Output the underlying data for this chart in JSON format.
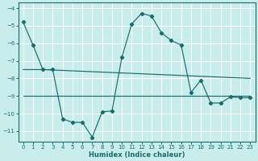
{
  "xlabel": "Humidex (Indice chaleur)",
  "background_color": "#c8edec",
  "grid_color": "#ffffff",
  "line_color": "#1a6b6b",
  "xlim": [
    -0.5,
    23.5
  ],
  "ylim": [
    -11.6,
    -3.7
  ],
  "yticks": [
    -11,
    -10,
    -9,
    -8,
    -7,
    -6,
    -5,
    -4
  ],
  "xticks": [
    0,
    1,
    2,
    3,
    4,
    5,
    6,
    7,
    8,
    9,
    10,
    11,
    12,
    13,
    14,
    15,
    16,
    17,
    18,
    19,
    20,
    21,
    22,
    23
  ],
  "series1_x": [
    0,
    1,
    2,
    3,
    4,
    5,
    6,
    7,
    8,
    9,
    10,
    11,
    12,
    13,
    14,
    15,
    16,
    17,
    18,
    19,
    20,
    21,
    22,
    23
  ],
  "series1_y": [
    -4.8,
    -6.1,
    -7.5,
    -7.5,
    -10.3,
    -10.5,
    -10.5,
    -11.35,
    -9.9,
    -9.85,
    -6.8,
    -4.9,
    -4.3,
    -4.45,
    -5.4,
    -5.85,
    -6.1,
    -8.8,
    -8.1,
    -9.4,
    -9.4,
    -9.05,
    -9.1,
    -9.1
  ],
  "series2_x": [
    0,
    2,
    23
  ],
  "series2_y": [
    -7.5,
    -7.5,
    -8.0
  ],
  "series3_x": [
    0,
    23
  ],
  "series3_y": [
    -9.0,
    -9.0
  ]
}
